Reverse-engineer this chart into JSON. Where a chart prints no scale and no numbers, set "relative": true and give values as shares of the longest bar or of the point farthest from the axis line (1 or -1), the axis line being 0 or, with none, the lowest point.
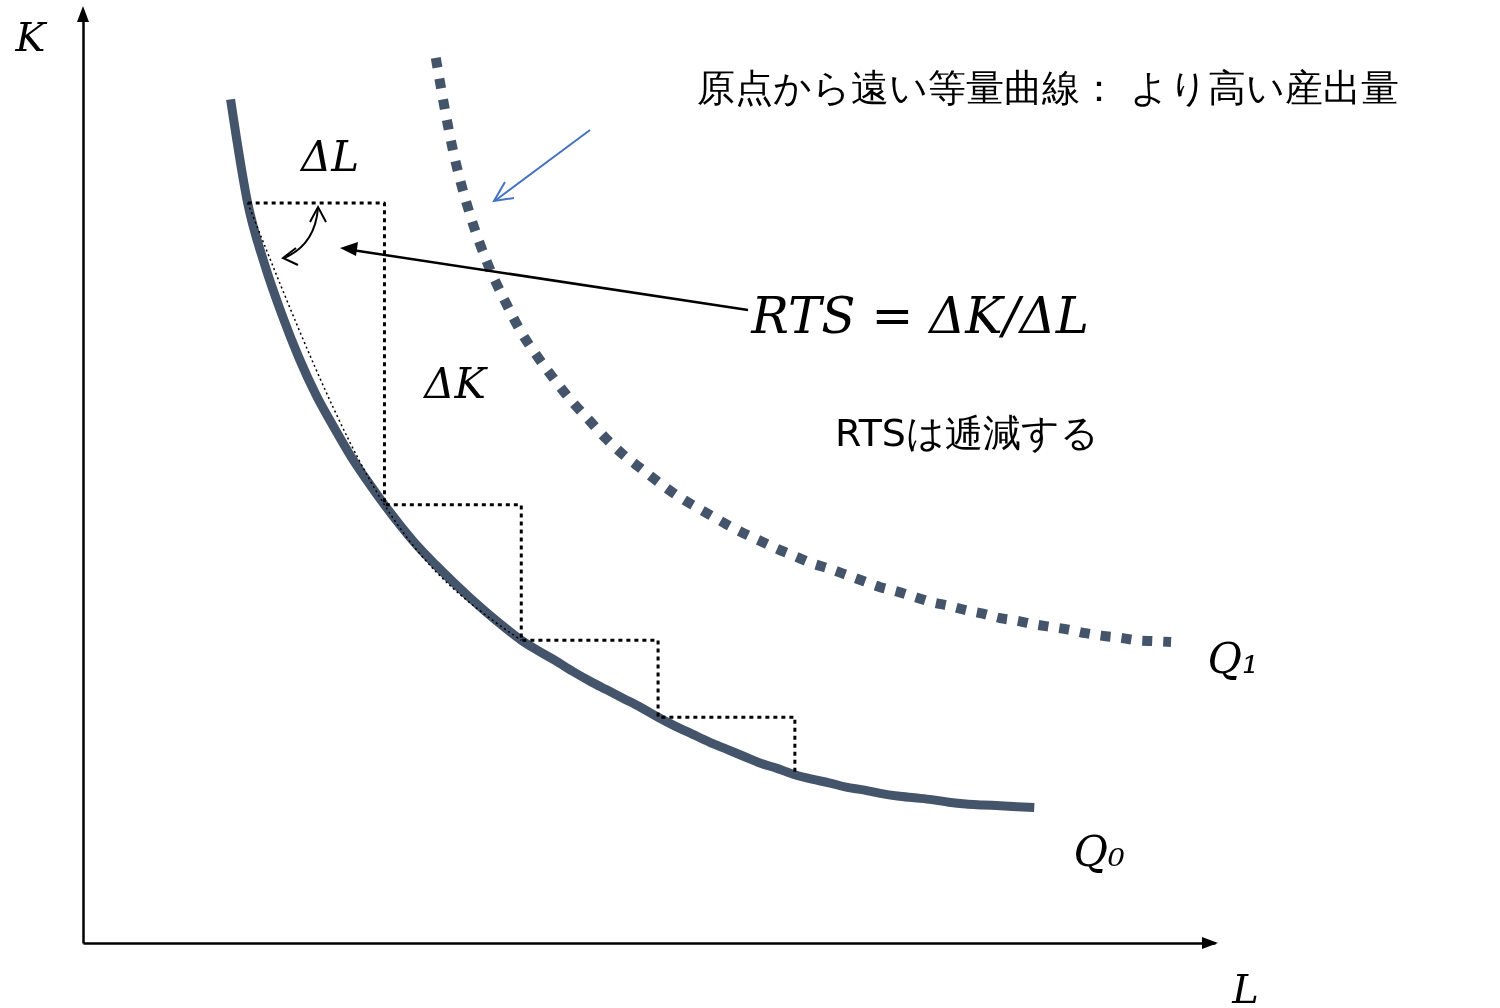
{
  "chart_data": {
    "type": "line",
    "relative": true,
    "xlabel": "L",
    "ylabel": "K",
    "grid": false,
    "marker": "none",
    "categories": [
      null,
      null,
      null,
      null,
      null,
      null,
      null,
      null,
      null,
      null,
      null,
      null,
      null,
      null,
      null,
      null,
      null,
      null,
      null,
      null,
      null,
      null,
      null,
      null,
      null,
      null,
      null,
      null,
      null,
      null,
      null,
      null,
      null,
      null,
      null,
      null,
      null,
      null,
      null,
      null,
      null,
      null,
      null,
      null,
      null,
      null,
      null,
      null,
      null,
      null,
      null,
      null,
      null,
      null,
      null,
      null
    ],
    "series": [
      {
        "name": "Q₀",
        "color": "#44546a",
        "line_style": "solid",
        "values": [
          0.953,
          0.836,
          0.766,
          0.71,
          0.661,
          0.619,
          0.584,
          0.551,
          0.522,
          0.495,
          0.47,
          0.447,
          0.427,
          0.408,
          0.39,
          0.373,
          0.357,
          0.342,
          0.33,
          0.319,
          0.307,
          0.296,
          0.286,
          0.276,
          0.266,
          0.255,
          0.245,
          0.236,
          0.227,
          0.219,
          0.211,
          0.203,
          0.197,
          0.19,
          0.185,
          0.181,
          0.176,
          0.173,
          0.169,
          0.166,
          0.164,
          0.162,
          0.159,
          0.157,
          0.156,
          0.155,
          0.154,
          0.153,
          null,
          null,
          null,
          null,
          null,
          null,
          null,
          null
        ]
      },
      {
        "name": "Q₁",
        "color": "#44546a",
        "line_style": "dotted",
        "values": [
          null,
          null,
          null,
          null,
          null,
          null,
          null,
          null,
          null,
          null,
          null,
          null,
          1.0,
          0.896,
          0.823,
          0.769,
          0.727,
          0.69,
          0.661,
          0.635,
          0.611,
          0.59,
          0.569,
          0.551,
          0.536,
          0.521,
          0.507,
          0.495,
          0.484,
          0.473,
          0.463,
          0.454,
          0.445,
          0.437,
          0.429,
          0.423,
          0.416,
          0.409,
          0.402,
          0.397,
          0.391,
          0.385,
          0.381,
          0.376,
          0.372,
          0.367,
          0.364,
          0.36,
          0.357,
          0.354,
          0.35,
          0.347,
          0.345,
          0.342,
          0.341,
          0.34
        ]
      },
      {
        "type": "step",
        "color": "#000000",
        "line_style": "dotted",
        "values": [
          null,
          0.836,
          null,
          null,
          null,
          null,
          null,
          null,
          null,
          0.495,
          null,
          null,
          null,
          null,
          null,
          null,
          null,
          0.342,
          null,
          null,
          null,
          null,
          null,
          null,
          null,
          0.255,
          null,
          null,
          null,
          null,
          null,
          null,
          null,
          0.19,
          null,
          null,
          null,
          null,
          null,
          null,
          null,
          null,
          null,
          null,
          null,
          null,
          null,
          null,
          null,
          null,
          null,
          null,
          null,
          null,
          null,
          null
        ]
      },
      {
        "type": "line",
        "color": "#000000",
        "line_style": "dotted",
        "values": [
          null,
          0.836,
          null,
          null,
          null,
          null,
          null,
          null,
          null,
          0.495,
          null,
          null,
          null,
          null,
          null,
          null,
          null,
          0.342,
          null,
          null,
          null,
          null,
          null,
          null,
          null,
          null,
          null,
          null,
          null,
          null,
          null,
          null,
          null,
          null,
          null,
          null,
          null,
          null,
          null,
          null,
          null,
          null,
          null,
          null,
          null,
          null,
          null,
          null,
          null,
          null,
          null,
          null,
          null,
          null,
          null,
          null
        ]
      }
    ],
    "annotations": [
      "原点から遠い等量曲線： より高い産出量",
      "ΔL",
      "ΔK",
      "RTS = ΔK/ΔL",
      "RTSは逓減する"
    ]
  }
}
